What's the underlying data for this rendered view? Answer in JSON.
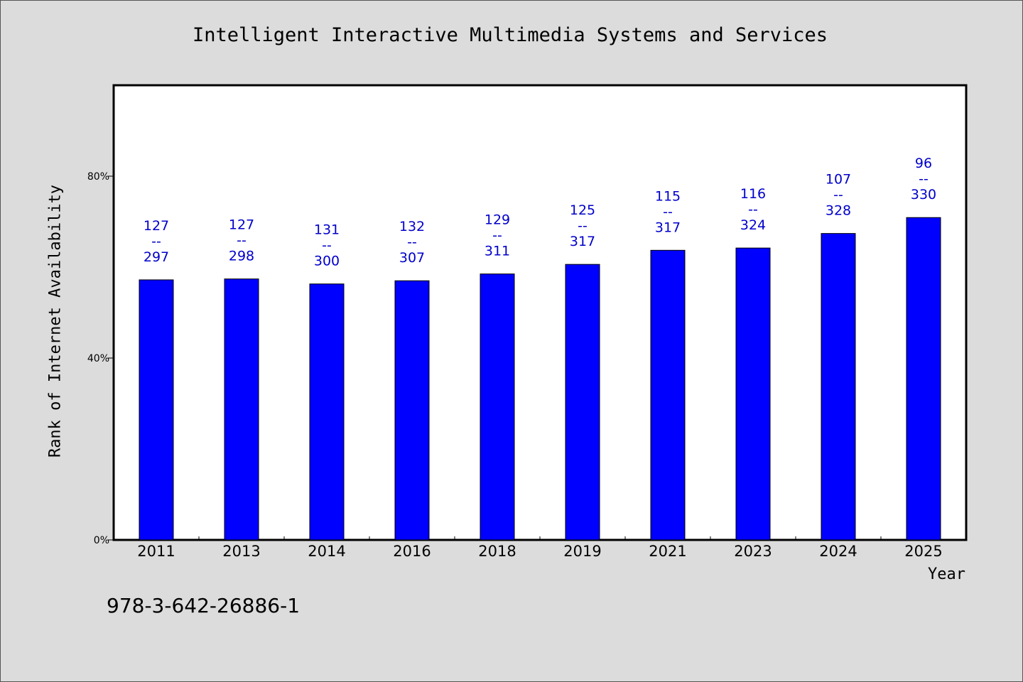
{
  "chart_data": {
    "type": "bar",
    "title": "Intelligent Interactive Multimedia Systems and Services",
    "xlabel": "Year",
    "ylabel": "Rank of Internet Availability",
    "categories": [
      "2011",
      "2013",
      "2014",
      "2016",
      "2018",
      "2019",
      "2021",
      "2023",
      "2024",
      "2025"
    ],
    "values": [
      0.572,
      0.574,
      0.563,
      0.57,
      0.585,
      0.606,
      0.637,
      0.642,
      0.674,
      0.709
    ],
    "data_labels": [
      [
        "127",
        "--",
        "297"
      ],
      [
        "127",
        "--",
        "298"
      ],
      [
        "131",
        "--",
        "300"
      ],
      [
        "132",
        "--",
        "307"
      ],
      [
        "129",
        "--",
        "311"
      ],
      [
        "125",
        "--",
        "317"
      ],
      [
        "115",
        "--",
        "317"
      ],
      [
        "116",
        "--",
        "324"
      ],
      [
        "107",
        "--",
        "328"
      ],
      [
        "96",
        "--",
        "330"
      ]
    ],
    "ylim": [
      0,
      1.0
    ],
    "yticks": [
      {
        "value": 0,
        "label": "0%"
      },
      {
        "value": 0.4,
        "label": "40%"
      },
      {
        "value": 0.8,
        "label": "80%"
      }
    ],
    "grid": false,
    "legend": "none",
    "colors": {
      "bar": "#0000ff",
      "data_label": "#0000cc",
      "plot_background": "#ffffff",
      "page_background": "#dcdcdc"
    }
  },
  "footer": {
    "isbn": "978-3-642-26886-1"
  }
}
